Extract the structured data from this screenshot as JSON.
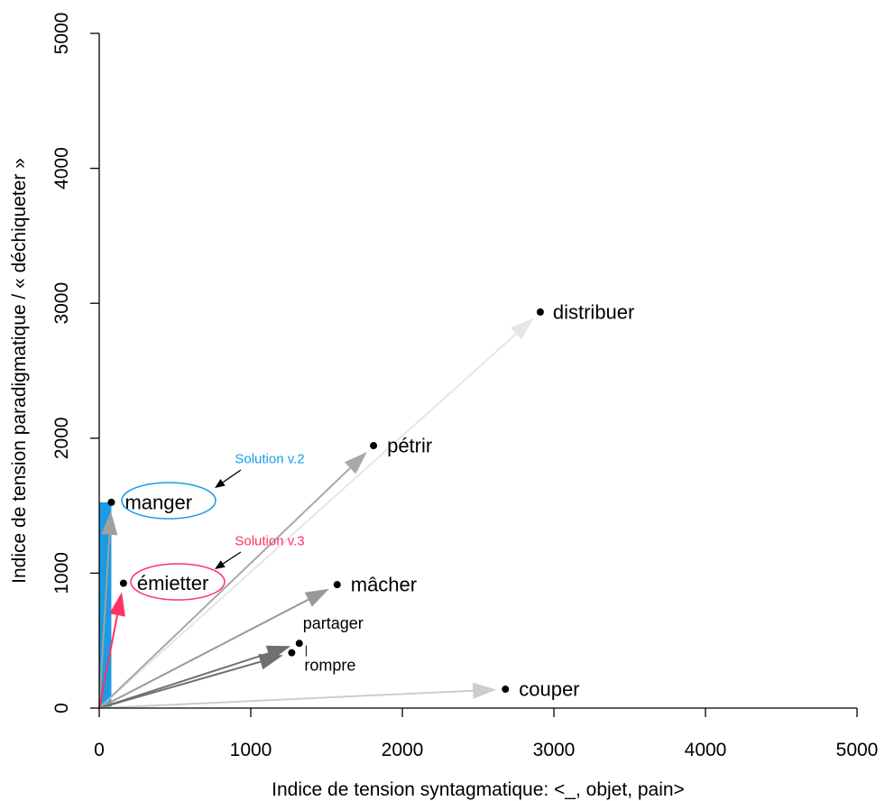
{
  "chart_data": {
    "type": "scatter",
    "title": "",
    "xlabel": "Indice de tension syntagmatique: <_, objet, pain>",
    "ylabel": "Indice de tension paradigmatique / « déchiqueter »",
    "xlim": [
      0,
      5000
    ],
    "ylim": [
      0,
      5000
    ],
    "x_ticks": [
      "0",
      "1000",
      "2000",
      "3000",
      "4000",
      "5000"
    ],
    "y_ticks": [
      "0",
      "1000",
      "2000",
      "3000",
      "4000",
      "5000"
    ],
    "origin": [
      0,
      0
    ],
    "points": [
      {
        "label": "distribuer",
        "x": 2910,
        "y": 2935,
        "arrow_color": "#e6e6e6",
        "size": "large"
      },
      {
        "label": "pétrir",
        "x": 1810,
        "y": 1945,
        "arrow_color": "#a8a8a8",
        "size": "large"
      },
      {
        "label": "manger",
        "x": 80,
        "y": 1525,
        "arrow_color": "#a0a0a0",
        "size": "large"
      },
      {
        "label": "émietter",
        "x": 160,
        "y": 925,
        "arrow_color": "#ff3366",
        "size": "large"
      },
      {
        "label": "mâcher",
        "x": 1570,
        "y": 915,
        "arrow_color": "#999999",
        "size": "large"
      },
      {
        "label": "partager",
        "x": 1320,
        "y": 480,
        "arrow_color": "#707070",
        "size": "small"
      },
      {
        "label": "rompre",
        "x": 1270,
        "y": 410,
        "arrow_color": "#707070",
        "size": "small"
      },
      {
        "label": "couper",
        "x": 2680,
        "y": 140,
        "arrow_color": "#cccccc",
        "size": "large"
      }
    ],
    "highlight_bar": {
      "label": "manger",
      "x0": 0,
      "x1": 80,
      "y": 1525,
      "color": "#1a9be6"
    },
    "annotations": [
      {
        "text": "Solution v.2",
        "target": "manger",
        "color": "#1a9be6"
      },
      {
        "text": "Solution v.3",
        "target": "émietter",
        "color": "#ff3366"
      }
    ],
    "grid": false,
    "legend": "none"
  }
}
